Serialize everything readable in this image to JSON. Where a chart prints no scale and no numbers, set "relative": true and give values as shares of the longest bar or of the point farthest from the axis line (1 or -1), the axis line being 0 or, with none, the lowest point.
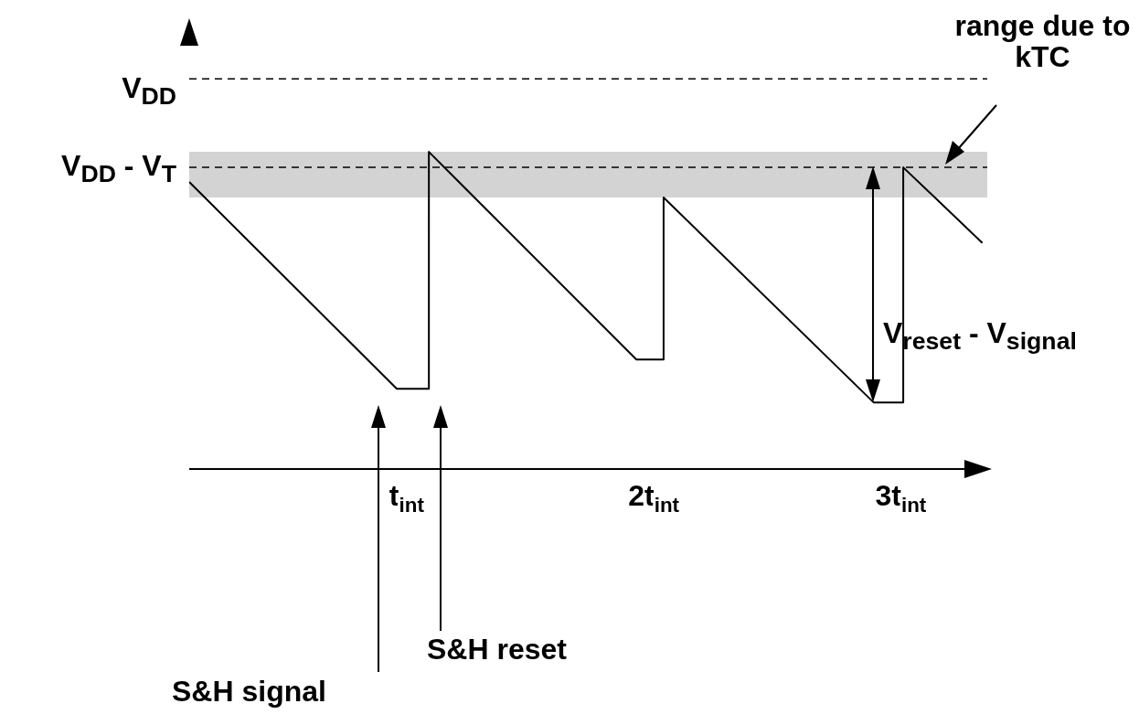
{
  "chart_data": {
    "type": "line",
    "relative": true,
    "x": [
      0.12,
      0.96,
      1.09,
      1.09,
      1.93,
      2.04,
      2.04,
      2.89,
      3.01,
      3.01,
      3.33
    ],
    "values": [
      0.905,
      0.253,
      0.253,
      1,
      0.345,
      0.345,
      0.856,
      0.21,
      0.21,
      0.951,
      0.713
    ],
    "color": "#000000",
    "xlim": [
      0.12,
      3.35
    ],
    "xticks": [
      {
        "value": 1,
        "label": "t$_{int}$"
      },
      {
        "value": 2,
        "label": "2t$_{int}$"
      },
      {
        "value": 3,
        "label": "3t$_{int}$"
      }
    ],
    "ref_lines": [
      {
        "axis": "y",
        "value": 1.23,
        "label": "V$_{DD}$",
        "line_style": "dashed"
      },
      {
        "axis": "y",
        "value": 0.951,
        "label": "V$_{DD}$ - V$_{T}$",
        "line_style": "dashed"
      }
    ],
    "bands": [
      {
        "axis": "y",
        "from": 0.856,
        "to": 1,
        "label": "range due to kTC",
        "color": "#d3d3d3"
      }
    ],
    "annotations": [
      "S&H signal",
      "S&H reset",
      "V$_{reset}$ - V$_{signal}$"
    ]
  }
}
